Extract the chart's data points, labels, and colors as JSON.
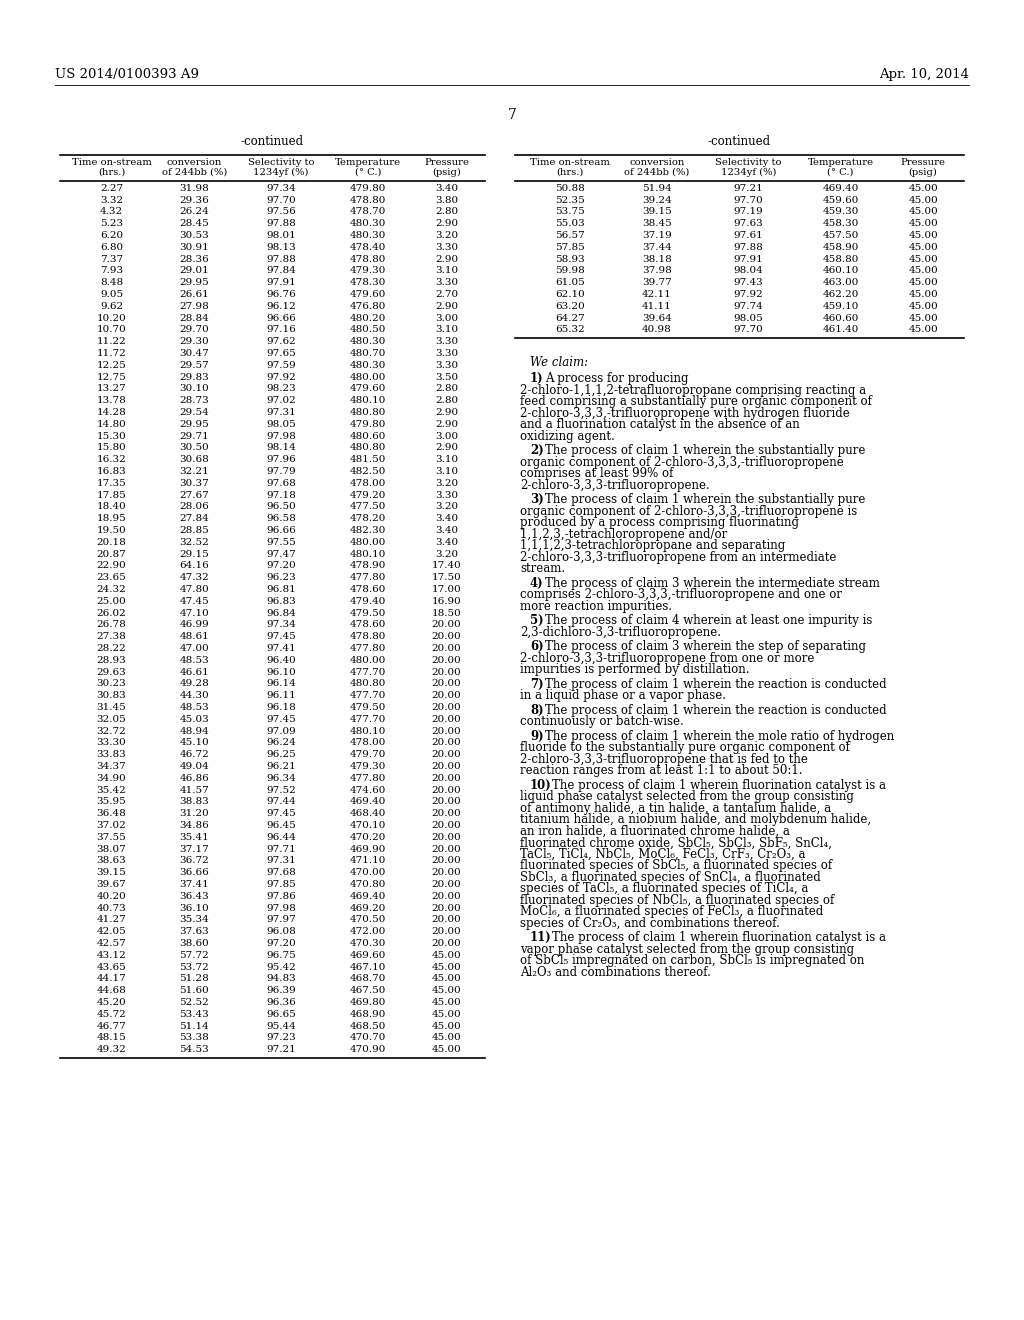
{
  "header_left": "US 2014/0100393 A9",
  "header_right": "Apr. 10, 2014",
  "page_number": "7",
  "table_continued_label": "-continued",
  "col_headers": [
    "Time on-stream\n(hrs.)",
    "conversion\nof 244bb (%)",
    "Selectivity to\n1234yf (%)",
    "Temperature\n(° C.)",
    "Pressure\n(psig)"
  ],
  "left_table_data": [
    [
      2.27,
      31.98,
      97.34,
      479.8,
      3.4
    ],
    [
      3.32,
      29.36,
      97.7,
      478.8,
      3.8
    ],
    [
      4.32,
      26.24,
      97.56,
      478.7,
      2.8
    ],
    [
      5.23,
      28.45,
      97.88,
      480.3,
      2.9
    ],
    [
      6.2,
      30.53,
      98.01,
      480.3,
      3.2
    ],
    [
      6.8,
      30.91,
      98.13,
      478.4,
      3.3
    ],
    [
      7.37,
      28.36,
      97.88,
      478.8,
      2.9
    ],
    [
      7.93,
      29.01,
      97.84,
      479.3,
      3.1
    ],
    [
      8.48,
      29.95,
      97.91,
      478.3,
      3.3
    ],
    [
      9.05,
      26.61,
      96.76,
      479.6,
      2.7
    ],
    [
      9.62,
      27.98,
      96.12,
      476.8,
      2.9
    ],
    [
      10.2,
      28.84,
      96.66,
      480.2,
      3.0
    ],
    [
      10.7,
      29.7,
      97.16,
      480.5,
      3.1
    ],
    [
      11.22,
      29.3,
      97.62,
      480.3,
      3.3
    ],
    [
      11.72,
      30.47,
      97.65,
      480.7,
      3.3
    ],
    [
      12.25,
      29.57,
      97.59,
      480.3,
      3.3
    ],
    [
      12.75,
      29.83,
      97.92,
      480.0,
      3.5
    ],
    [
      13.27,
      30.1,
      98.23,
      479.6,
      2.8
    ],
    [
      13.78,
      28.73,
      97.02,
      480.1,
      2.8
    ],
    [
      14.28,
      29.54,
      97.31,
      480.8,
      2.9
    ],
    [
      14.8,
      29.95,
      98.05,
      479.8,
      2.9
    ],
    [
      15.3,
      29.71,
      97.98,
      480.6,
      3.0
    ],
    [
      15.8,
      30.5,
      98.14,
      480.8,
      2.9
    ],
    [
      16.32,
      30.68,
      97.96,
      481.5,
      3.1
    ],
    [
      16.83,
      32.21,
      97.79,
      482.5,
      3.1
    ],
    [
      17.35,
      30.37,
      97.68,
      478.0,
      3.2
    ],
    [
      17.85,
      27.67,
      97.18,
      479.2,
      3.3
    ],
    [
      18.4,
      28.06,
      96.5,
      477.5,
      3.2
    ],
    [
      18.95,
      27.84,
      96.58,
      478.2,
      3.4
    ],
    [
      19.5,
      28.85,
      96.66,
      482.3,
      3.4
    ],
    [
      20.18,
      32.52,
      97.55,
      480.0,
      3.4
    ],
    [
      20.87,
      29.15,
      97.47,
      480.1,
      3.2
    ],
    [
      22.9,
      64.16,
      97.2,
      478.9,
      17.4
    ],
    [
      23.65,
      47.32,
      96.23,
      477.8,
      17.5
    ],
    [
      24.32,
      47.8,
      96.81,
      478.6,
      17.0
    ],
    [
      25.0,
      47.45,
      96.83,
      479.4,
      16.9
    ],
    [
      26.02,
      47.1,
      96.84,
      479.5,
      18.5
    ],
    [
      26.78,
      46.99,
      97.34,
      478.6,
      20.0
    ],
    [
      27.38,
      48.61,
      97.45,
      478.8,
      20.0
    ],
    [
      28.22,
      47.0,
      97.41,
      477.8,
      20.0
    ],
    [
      28.93,
      48.53,
      96.4,
      480.0,
      20.0
    ],
    [
      29.63,
      46.61,
      96.1,
      477.7,
      20.0
    ],
    [
      30.23,
      49.28,
      96.14,
      480.8,
      20.0
    ],
    [
      30.83,
      44.3,
      96.11,
      477.7,
      20.0
    ],
    [
      31.45,
      48.53,
      96.18,
      479.5,
      20.0
    ],
    [
      32.05,
      45.03,
      97.45,
      477.7,
      20.0
    ],
    [
      32.72,
      48.94,
      97.09,
      480.1,
      20.0
    ],
    [
      33.3,
      45.1,
      96.24,
      478.0,
      20.0
    ],
    [
      33.83,
      46.72,
      96.25,
      479.7,
      20.0
    ],
    [
      34.37,
      49.04,
      96.21,
      479.3,
      20.0
    ],
    [
      34.9,
      46.86,
      96.34,
      477.8,
      20.0
    ],
    [
      35.42,
      41.57,
      97.52,
      474.6,
      20.0
    ],
    [
      35.95,
      38.83,
      97.44,
      469.4,
      20.0
    ],
    [
      36.48,
      31.2,
      97.45,
      468.4,
      20.0
    ],
    [
      37.02,
      34.86,
      96.45,
      470.1,
      20.0
    ],
    [
      37.55,
      35.41,
      96.44,
      470.2,
      20.0
    ],
    [
      38.07,
      37.17,
      97.71,
      469.9,
      20.0
    ],
    [
      38.63,
      36.72,
      97.31,
      471.1,
      20.0
    ],
    [
      39.15,
      36.66,
      97.68,
      470.0,
      20.0
    ],
    [
      39.67,
      37.41,
      97.85,
      470.8,
      20.0
    ],
    [
      40.2,
      36.43,
      97.86,
      469.4,
      20.0
    ],
    [
      40.73,
      36.1,
      97.98,
      469.2,
      20.0
    ],
    [
      41.27,
      35.34,
      97.97,
      470.5,
      20.0
    ],
    [
      42.05,
      37.63,
      96.08,
      472.0,
      20.0
    ],
    [
      42.57,
      38.6,
      97.2,
      470.3,
      20.0
    ],
    [
      43.12,
      57.72,
      96.75,
      469.6,
      45.0
    ],
    [
      43.65,
      53.72,
      95.42,
      467.1,
      45.0
    ],
    [
      44.17,
      51.28,
      94.83,
      468.7,
      45.0
    ],
    [
      44.68,
      51.6,
      96.39,
      467.5,
      45.0
    ],
    [
      45.2,
      52.52,
      96.36,
      469.8,
      45.0
    ],
    [
      45.72,
      53.43,
      96.65,
      468.9,
      45.0
    ],
    [
      46.77,
      51.14,
      95.44,
      468.5,
      45.0
    ],
    [
      48.15,
      53.38,
      97.23,
      470.7,
      45.0
    ],
    [
      49.32,
      54.53,
      97.21,
      470.9,
      45.0
    ]
  ],
  "right_table_data": [
    [
      50.88,
      51.94,
      97.21,
      469.4,
      45.0
    ],
    [
      52.35,
      39.24,
      97.7,
      459.6,
      45.0
    ],
    [
      53.75,
      39.15,
      97.19,
      459.3,
      45.0
    ],
    [
      55.03,
      38.45,
      97.63,
      458.3,
      45.0
    ],
    [
      56.57,
      37.19,
      97.61,
      457.5,
      45.0
    ],
    [
      57.85,
      37.44,
      97.88,
      458.9,
      45.0
    ],
    [
      58.93,
      38.18,
      97.91,
      458.8,
      45.0
    ],
    [
      59.98,
      37.98,
      98.04,
      460.1,
      45.0
    ],
    [
      61.05,
      39.77,
      97.43,
      463.0,
      45.0
    ],
    [
      62.1,
      42.11,
      97.92,
      462.2,
      45.0
    ],
    [
      63.2,
      41.11,
      97.74,
      459.1,
      45.0
    ],
    [
      64.27,
      39.64,
      98.05,
      460.6,
      45.0
    ],
    [
      65.32,
      40.98,
      97.7,
      461.4,
      45.0
    ]
  ],
  "claims": [
    {
      "number": "1",
      "text": "A process for producing 2-chloro-1,1,1,2-tetrafluoropropane comprising reacting a feed comprising a substantially pure organic component of 2-chloro-3,3,3,-trifluoropropene with hydrogen fluoride and a fluorination catalyst in the absence of an oxidizing agent."
    },
    {
      "number": "2",
      "text": "The process of claim 1 wherein the substantially pure organic component of 2-chloro-3,3,3,-trifluoropropene comprises at least 99% of 2-chloro-3,3,3-trifluoropropene."
    },
    {
      "number": "3",
      "text": "The process of claim 1 wherein the substantially pure organic component of 2-chloro-3,3,3,-trifluoropropene is produced by a process comprising fluorinating 1,1,2,3,-tetrachloropropene and/or 1,1,1,2,3-tetrachloropropane and separating 2-chloro-3,3,3-trifluoropropene from an intermediate stream."
    },
    {
      "number": "4",
      "text": "The process of claim 3 wherein the intermediate stream comprises 2-chloro-3,3,3,-trifluoropropene and one or more reaction impurities."
    },
    {
      "number": "5",
      "text": "The process of claim 4 wherein at least one impurity is 2,3-dichloro-3,3-trifluoropropene."
    },
    {
      "number": "6",
      "text": "The process of claim 3 wherein the step of separating 2-chloro-3,3,3-trifluoropropene from one or more impurities is performed by distillation."
    },
    {
      "number": "7",
      "text": "The process of claim 1 wherein the reaction is conducted in a liquid phase or a vapor phase."
    },
    {
      "number": "8",
      "text": "The process of claim 1 wherein the reaction is conducted continuously or batch-wise."
    },
    {
      "number": "9",
      "text": "The process of claim 1 wherein the mole ratio of hydrogen fluoride to the substantially pure organic component of 2-chloro-3,3,3-trifluoropropene that is fed to the reaction ranges from at least 1:1 to about 50:1."
    },
    {
      "number": "10",
      "text": "The process of claim 1 wherein fluorination catalyst is a liquid phase catalyst selected from the group consisting of antimony halide, a tin halide, a tantalum halide, a titanium halide, a niobium halide, and molybdenum halide, an iron halide, a fluorinated chrome halide, a fluorinated chrome oxide, SbCl₅, SbCl₃, SbF₅, SnCl₄, TaCl₅, TiCl₄, NbCl₅, MoCl₆, FeCl₃, CrF₃, Cr₂O₃, a fluorinated species of SbCl₅, a fluorinated species of SbCl₃, a fluorinated species of SnCl₄, a fluorinated species of TaCl₅, a fluorinated species of TiCl₄, a fluorinated species of NbCl₅, a fluorinated species of MoCl₆, a fluorinated species of FeCl₃, a fluorinated species of Cr₂O₃, and combinations thereof."
    },
    {
      "number": "11",
      "text": "The process of claim 1 wherein fluorination catalyst is a vapor phase catalyst selected from the group consisting of SbCl₅ impregnated on carbon, SbCl₅ is impregnated on Al₂O₃ and combinations thereof."
    }
  ],
  "bg_color": "#ffffff"
}
